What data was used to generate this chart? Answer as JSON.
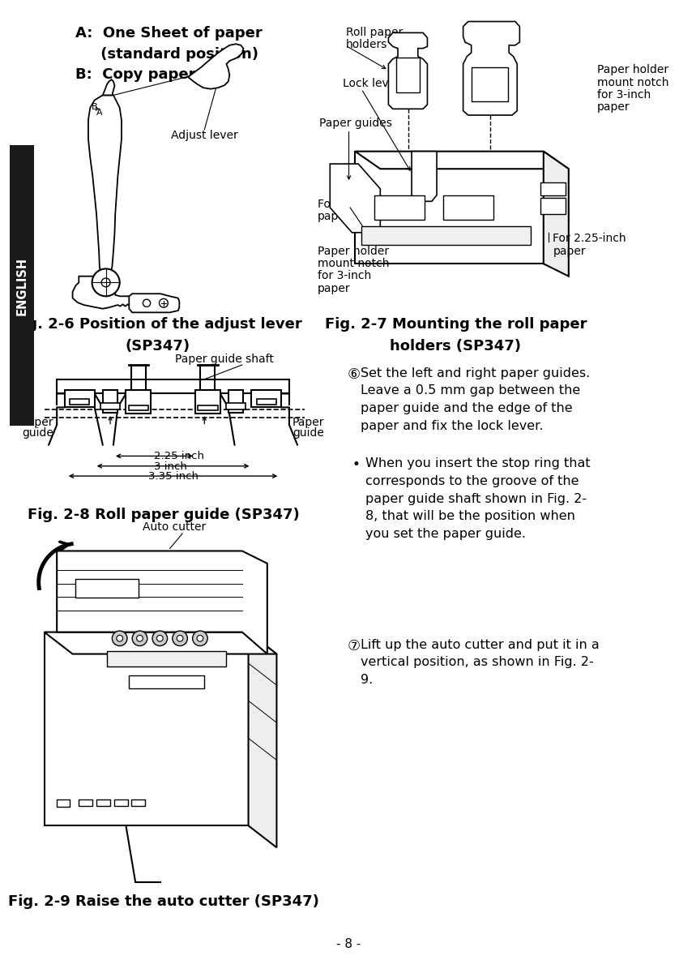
{
  "page_bg": "#ffffff",
  "sidebar_color": "#1a1a1a",
  "sidebar_text": "ENGLISH",
  "fig6_title_line1": "Fig. 2-6 Position of the adjust lever",
  "fig6_title_line2": "(SP347)",
  "fig7_title_line1": "Fig. 2-7 Mounting the roll paper",
  "fig7_title_line2": "holders (SP347)",
  "fig8_title": "Fig. 2-8 Roll paper guide (SP347)",
  "fig9_title": "Fig. 2-9 Raise the auto cutter (SP347)",
  "label_A": "A:  One Sheet of paper",
  "label_A2": "     (standard position)",
  "label_B": "B:  Copy paper",
  "label_adjust_lever": "Adjust lever",
  "label_roll_paper_holders": "Roll paper",
  "label_roll_paper_holders2": "holders",
  "label_lock_lever": "Lock lever",
  "label_paper_guides": "Paper guides",
  "label_paper_holder_notch_3in": "Paper holder",
  "label_paper_holder_notch_3in2": "mount notch",
  "label_paper_holder_notch_3in3": "for 3-inch",
  "label_paper_holder_notch_3in4": "paper",
  "label_225_paper_left1": "For 2.25-inch",
  "label_225_paper_left2": "paper",
  "label_225_paper_right1": "For 2.25-inch",
  "label_225_paper_right2": "paper",
  "label_ph_notch_3in_bottom1": "Paper holder",
  "label_ph_notch_3in_bottom2": "mount notch",
  "label_ph_notch_3in_bottom3": "for 3-inch",
  "label_ph_notch_3in_bottom4": "paper",
  "label_paper_guide_shaft": "Paper guide shaft",
  "label_paper_guide_left1": "Paper",
  "label_paper_guide_left2": "guide",
  "label_paper_guide_right1": "Paper",
  "label_paper_guide_right2": "guide",
  "label_225_inch": "2.25 inch",
  "label_3_inch": "3 inch",
  "label_335_inch": "3.35 inch",
  "label_auto_cutter": "Auto cutter",
  "text_step5": "Set the left and right paper guides.\nLeave a 0.5 mm gap between the\npaper guide and the edge of the\npaper and fix the lock lever.",
  "text_bullet": "When you insert the stop ring that\ncorresponds to the groove of the\npaper guide shaft shown in Fig. 2-\n8, that will be the position when\nyou set the paper guide.",
  "text_step6": "Lift up the auto cutter and put it in a\nvertical position, as shown in Fig. 2-\n9.",
  "page_number": "- 8 -",
  "text_color": "#000000"
}
